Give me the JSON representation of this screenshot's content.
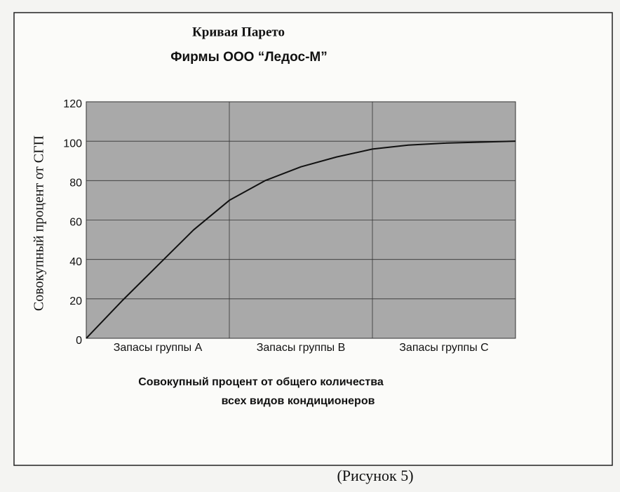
{
  "chart_data": {
    "type": "line",
    "title": "Кривая Парето",
    "subtitle": "Фирмы ООО “Ледос-М”",
    "y_label": "Совокупный процент от СГП",
    "x_label": [
      "Совокупный процент от общего количества",
      "всех видов кондиционеров"
    ],
    "caption": "(Рисунок 5)",
    "categories": [
      "Запасы группы А",
      "Запасы группы В",
      "Запасы группы С"
    ],
    "x": [
      0,
      0.25,
      0.5,
      0.75,
      1,
      1.25,
      1.5,
      1.75,
      2,
      2.25,
      2.5,
      3
    ],
    "series": [
      {
        "color": "#111111",
        "values": [
          0,
          19,
          37,
          55,
          70,
          80,
          87,
          92,
          96,
          98,
          99,
          100
        ]
      }
    ],
    "xlim": [
      0,
      3
    ],
    "ylim": [
      0,
      120
    ],
    "yticks": [
      0,
      20,
      40,
      60,
      80,
      100,
      120
    ],
    "grid": true,
    "plot_color": "#a9a9a9"
  }
}
